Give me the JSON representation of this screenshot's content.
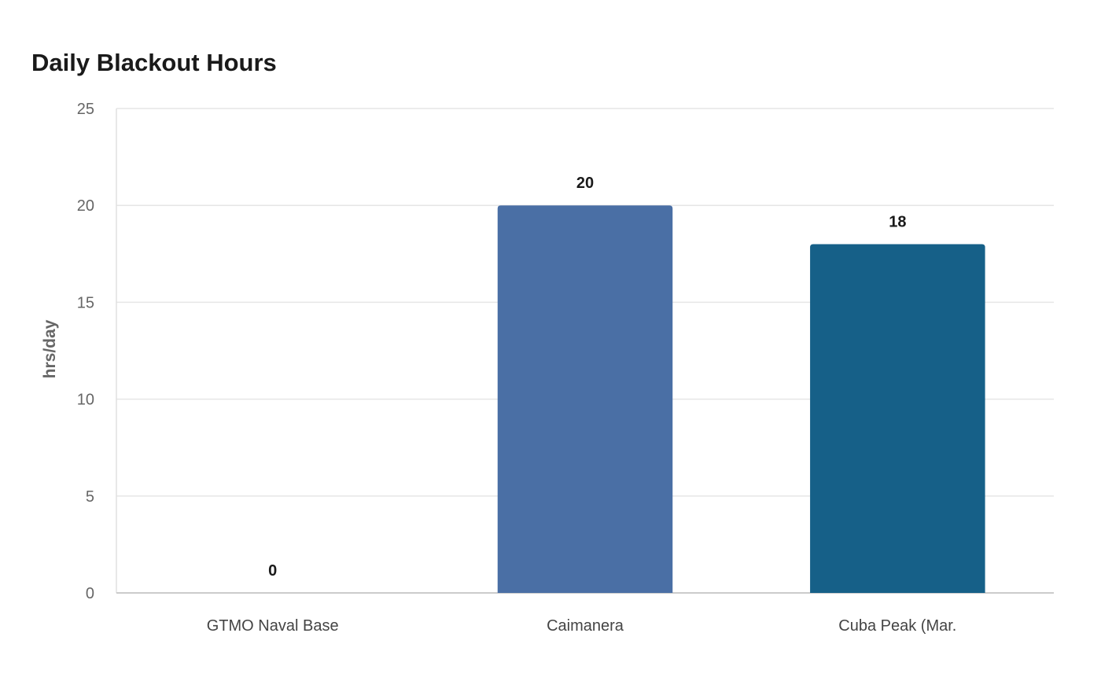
{
  "chart_data": {
    "type": "bar",
    "title": "Daily Blackout Hours",
    "xlabel": "",
    "ylabel": "hrs/day",
    "categories": [
      "GTMO Naval Base",
      "Caimanera",
      "Cuba Peak (Mar."
    ],
    "values": [
      0,
      20,
      18
    ],
    "colors": [
      "#4a6fa5",
      "#4a6fa5",
      "#166088"
    ],
    "ylim": [
      0,
      25
    ],
    "yticks": [
      0,
      5,
      10,
      15,
      20,
      25
    ],
    "grid": true,
    "legend": "none"
  }
}
